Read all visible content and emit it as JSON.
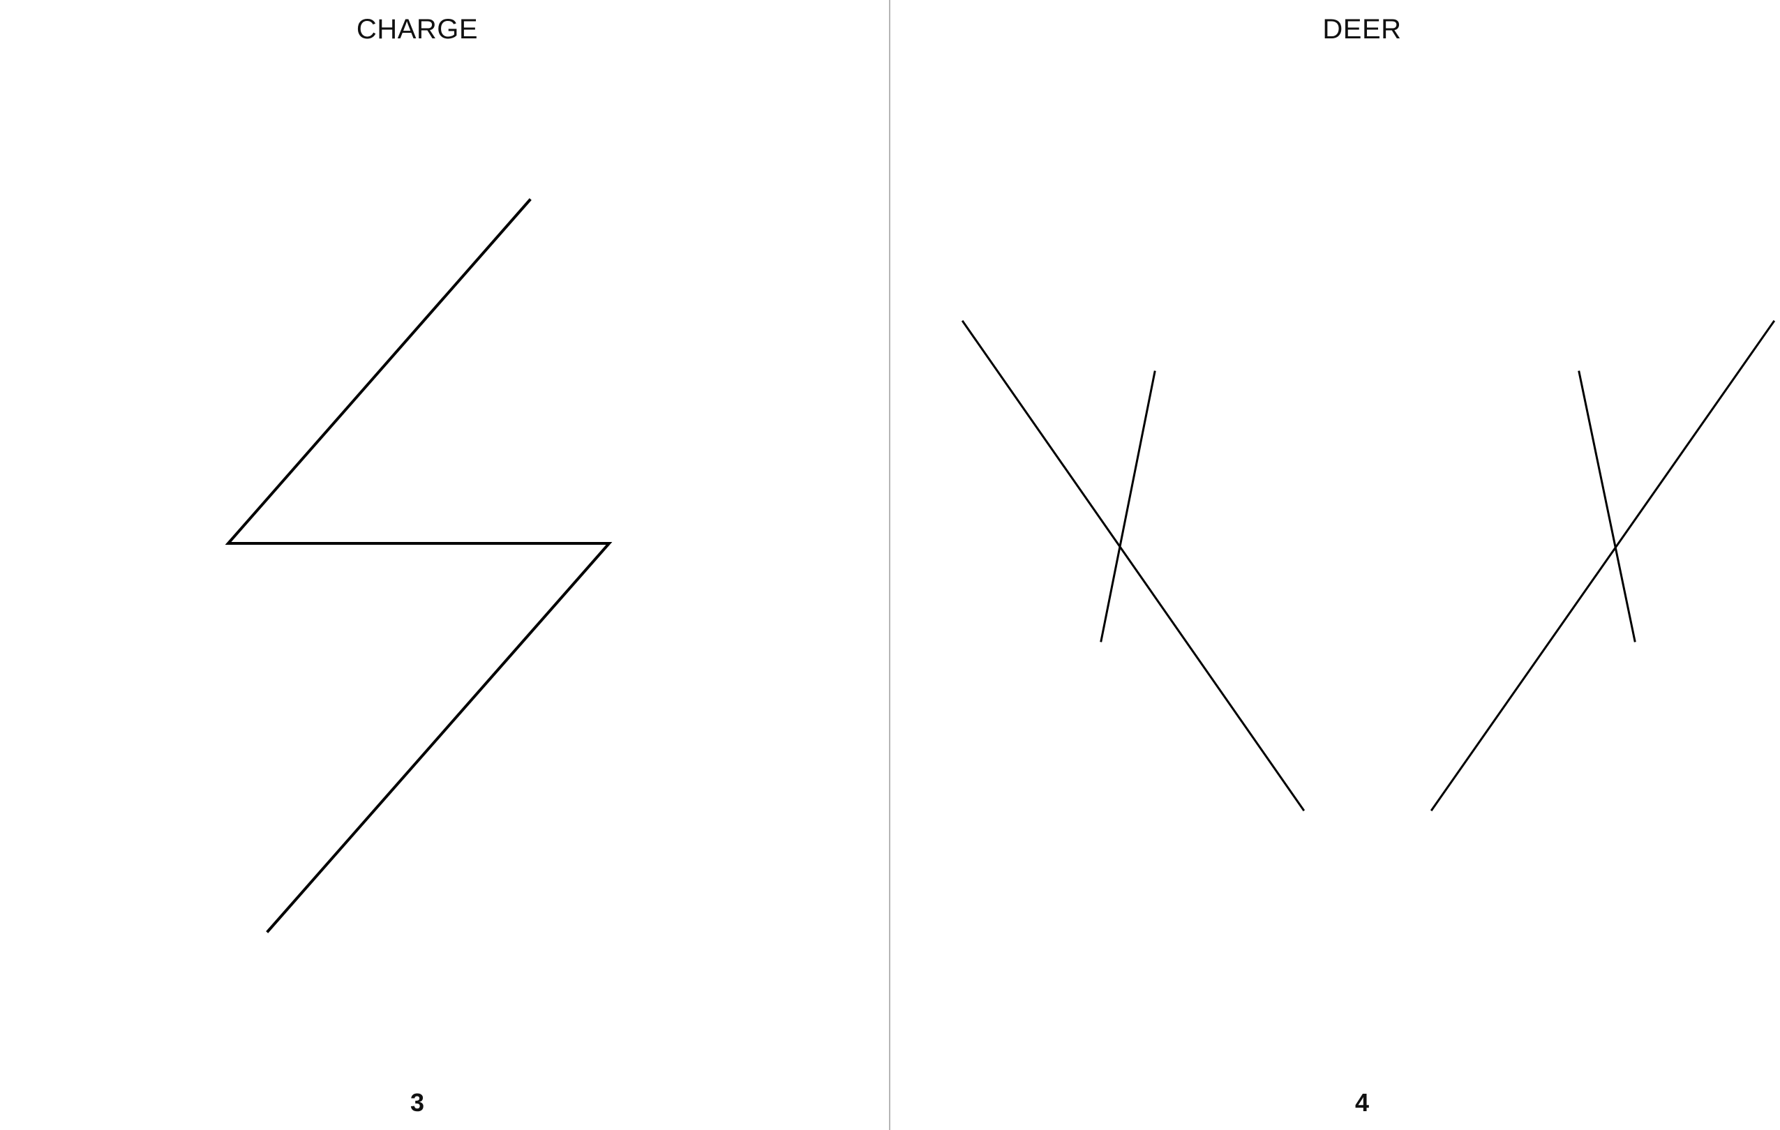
{
  "pages": {
    "left": {
      "title": "CHARGE",
      "page_number": "3",
      "glyph_icon": "zigzag-bolt-icon"
    },
    "right": {
      "title": "DEER",
      "page_number": "4",
      "glyph_icon": "antler-lines-icon"
    }
  },
  "colors": {
    "ink": "#000000",
    "divider": "#b5b5b5",
    "background": "#ffffff"
  }
}
